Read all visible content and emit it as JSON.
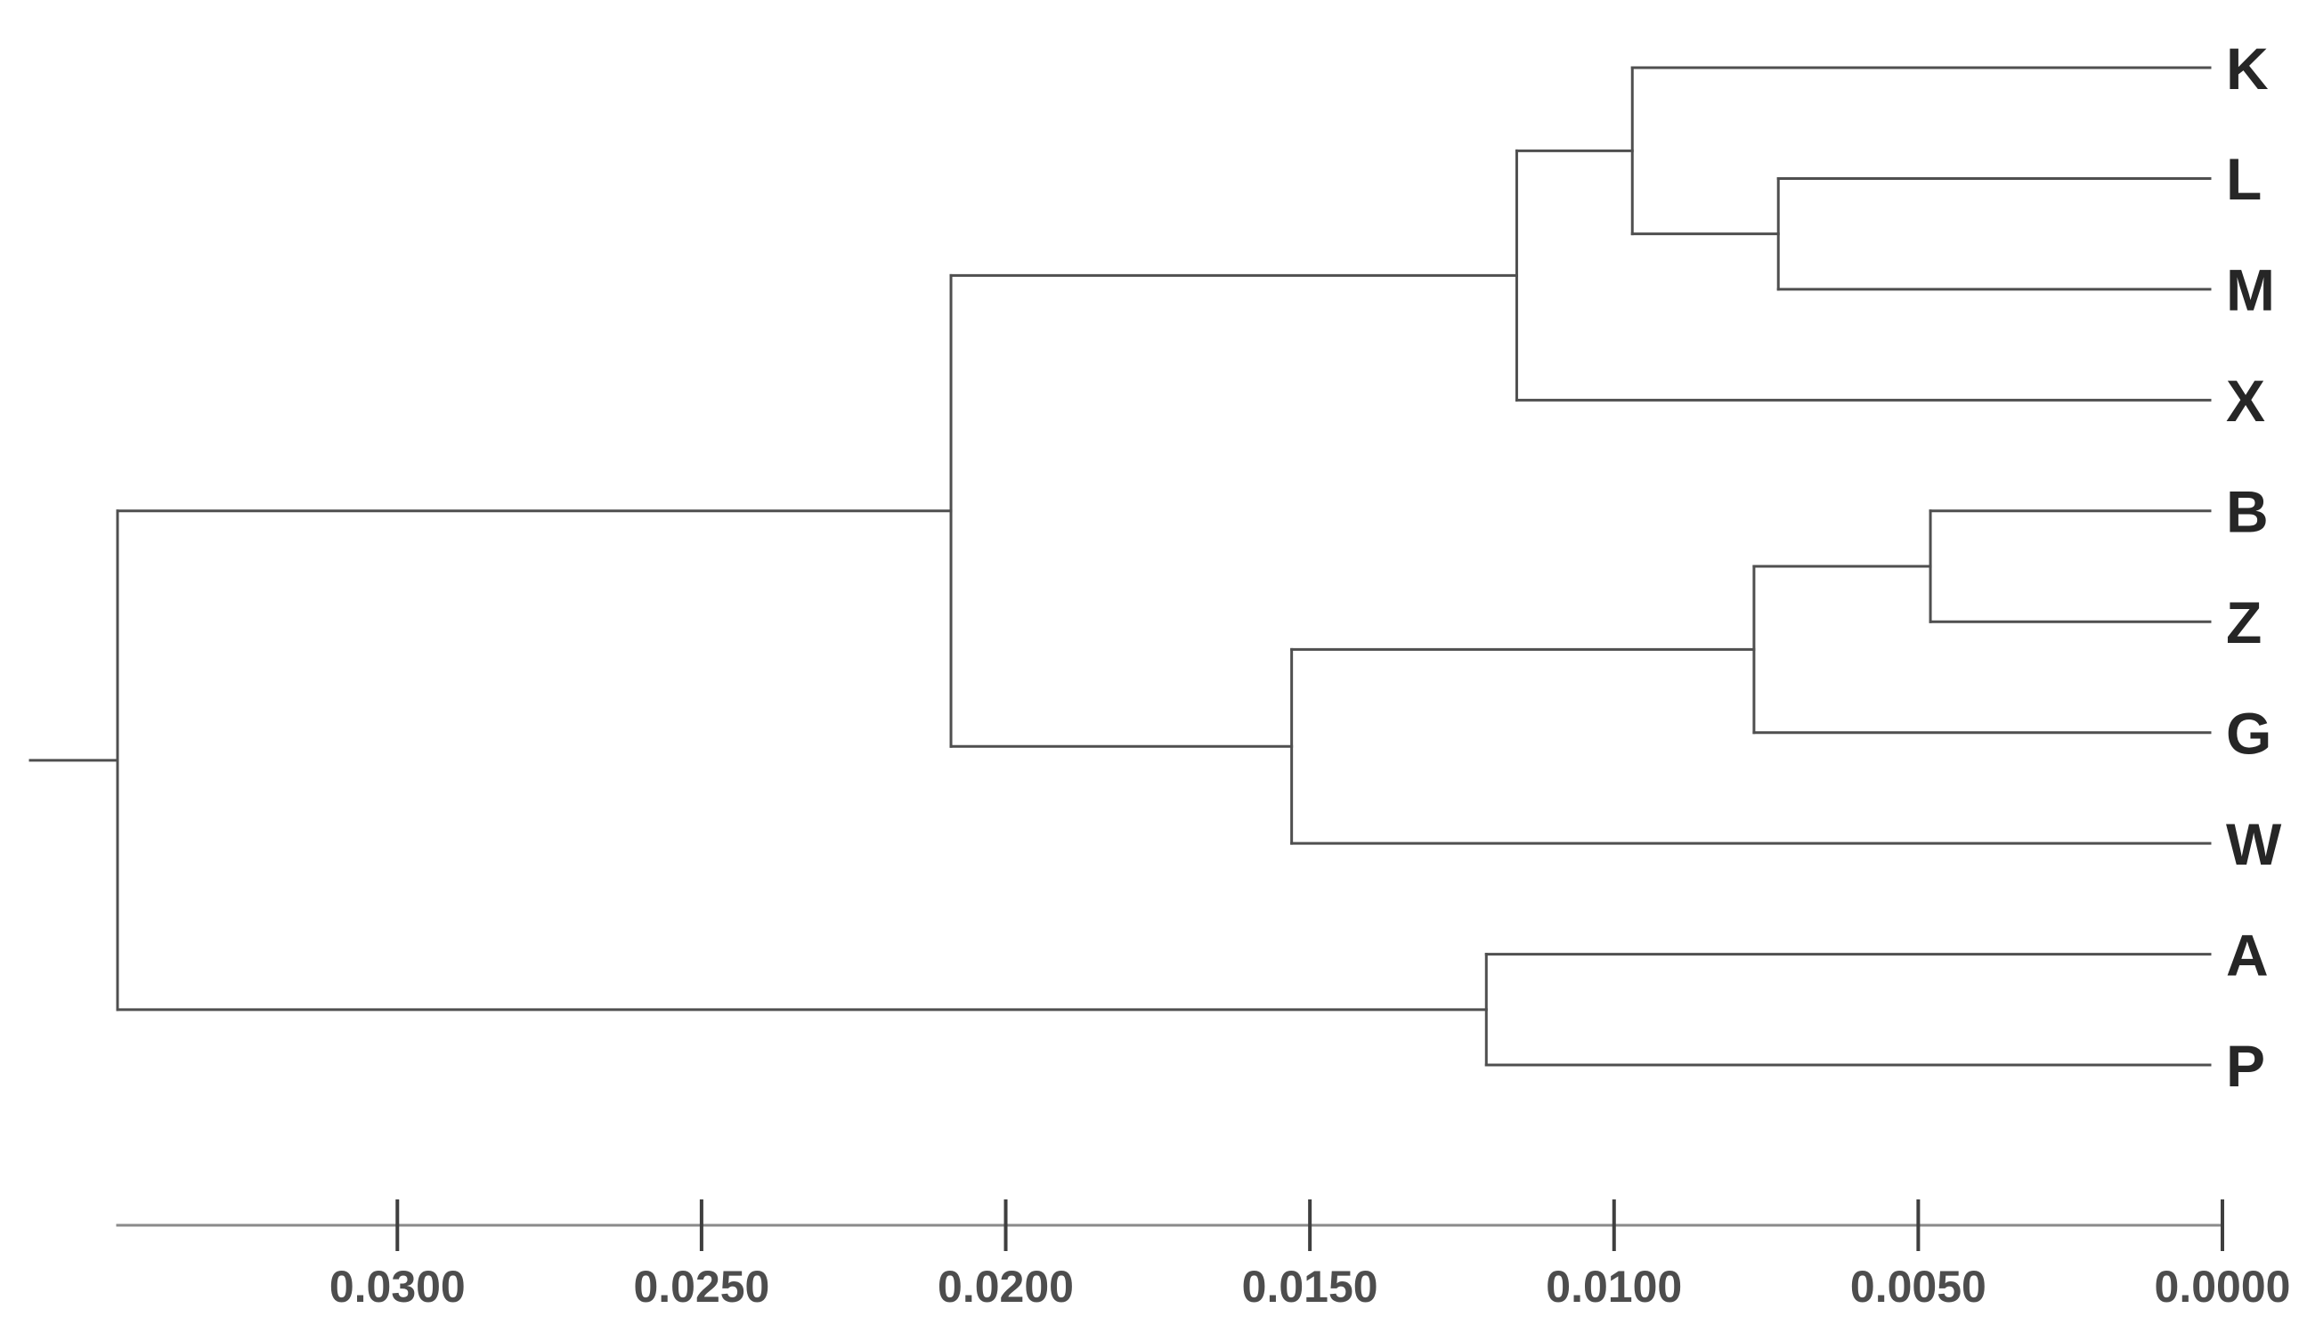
{
  "figure": {
    "title": "",
    "background_color": "#ffffff",
    "tree_line_color": "#4f4f4f",
    "axis_line_color": "#8a8a8a",
    "tick_color": "#3f3f3f",
    "leaf_label_color": "#262626",
    "axis_text_color": "#4d4d4d"
  },
  "chart_data": {
    "type": "dendrogram",
    "orientation": "horizontal-leaves-right",
    "title": "",
    "xlabel": "",
    "ylabel": "",
    "grid": false,
    "legend": "none",
    "leaves": [
      "K",
      "L",
      "M",
      "X",
      "B",
      "Z",
      "G",
      "W",
      "A",
      "P"
    ],
    "axis": {
      "max": 0.0346,
      "min": 0.0,
      "direction": "distance decreases left-to-right, zero at leaf tips",
      "tick_labels": [
        "0.0300",
        "0.0250",
        "0.0200",
        "0.0150",
        "0.0100",
        "0.0050",
        "0.0000"
      ],
      "tick_values": [
        0.03,
        0.025,
        0.02,
        0.015,
        0.01,
        0.005,
        0.0
      ]
    },
    "merges": [
      {
        "id": "LM",
        "members": [
          "L",
          "M"
        ],
        "height": 0.0073
      },
      {
        "id": "KLM",
        "members": [
          "K",
          "LM"
        ],
        "height": 0.0097
      },
      {
        "id": "KLMX",
        "members": [
          "KLM",
          "X"
        ],
        "height": 0.0116
      },
      {
        "id": "BZ",
        "members": [
          "B",
          "Z"
        ],
        "height": 0.0048
      },
      {
        "id": "BZG",
        "members": [
          "BZ",
          "G"
        ],
        "height": 0.0077
      },
      {
        "id": "BZGW",
        "members": [
          "BZG",
          "W"
        ],
        "height": 0.0153
      },
      {
        "id": "KLMX_BZGW",
        "members": [
          "KLMX",
          "BZGW"
        ],
        "height": 0.0209
      },
      {
        "id": "AP",
        "members": [
          "A",
          "P"
        ],
        "height": 0.0121
      },
      {
        "id": "root",
        "members": [
          "KLMX_BZGW",
          "AP"
        ],
        "height": 0.0346
      }
    ],
    "tree": {
      "id": "root",
      "height": 0.0346,
      "children": [
        {
          "id": "KLMX_BZGW",
          "height": 0.0209,
          "children": [
            {
              "id": "KLMX",
              "height": 0.0116,
              "children": [
                {
                  "id": "KLM",
                  "height": 0.0097,
                  "children": [
                    {
                      "leaf": "K"
                    },
                    {
                      "id": "LM",
                      "height": 0.0073,
                      "children": [
                        {
                          "leaf": "L"
                        },
                        {
                          "leaf": "M"
                        }
                      ]
                    }
                  ]
                },
                {
                  "leaf": "X"
                }
              ]
            },
            {
              "id": "BZGW",
              "height": 0.0153,
              "children": [
                {
                  "id": "BZG",
                  "height": 0.0077,
                  "children": [
                    {
                      "id": "BZ",
                      "height": 0.0048,
                      "children": [
                        {
                          "leaf": "B"
                        },
                        {
                          "leaf": "Z"
                        }
                      ]
                    },
                    {
                      "leaf": "G"
                    }
                  ]
                },
                {
                  "leaf": "W"
                }
              ]
            }
          ]
        },
        {
          "id": "AP",
          "height": 0.0121,
          "children": [
            {
              "leaf": "A"
            },
            {
              "leaf": "P"
            }
          ]
        }
      ]
    }
  }
}
